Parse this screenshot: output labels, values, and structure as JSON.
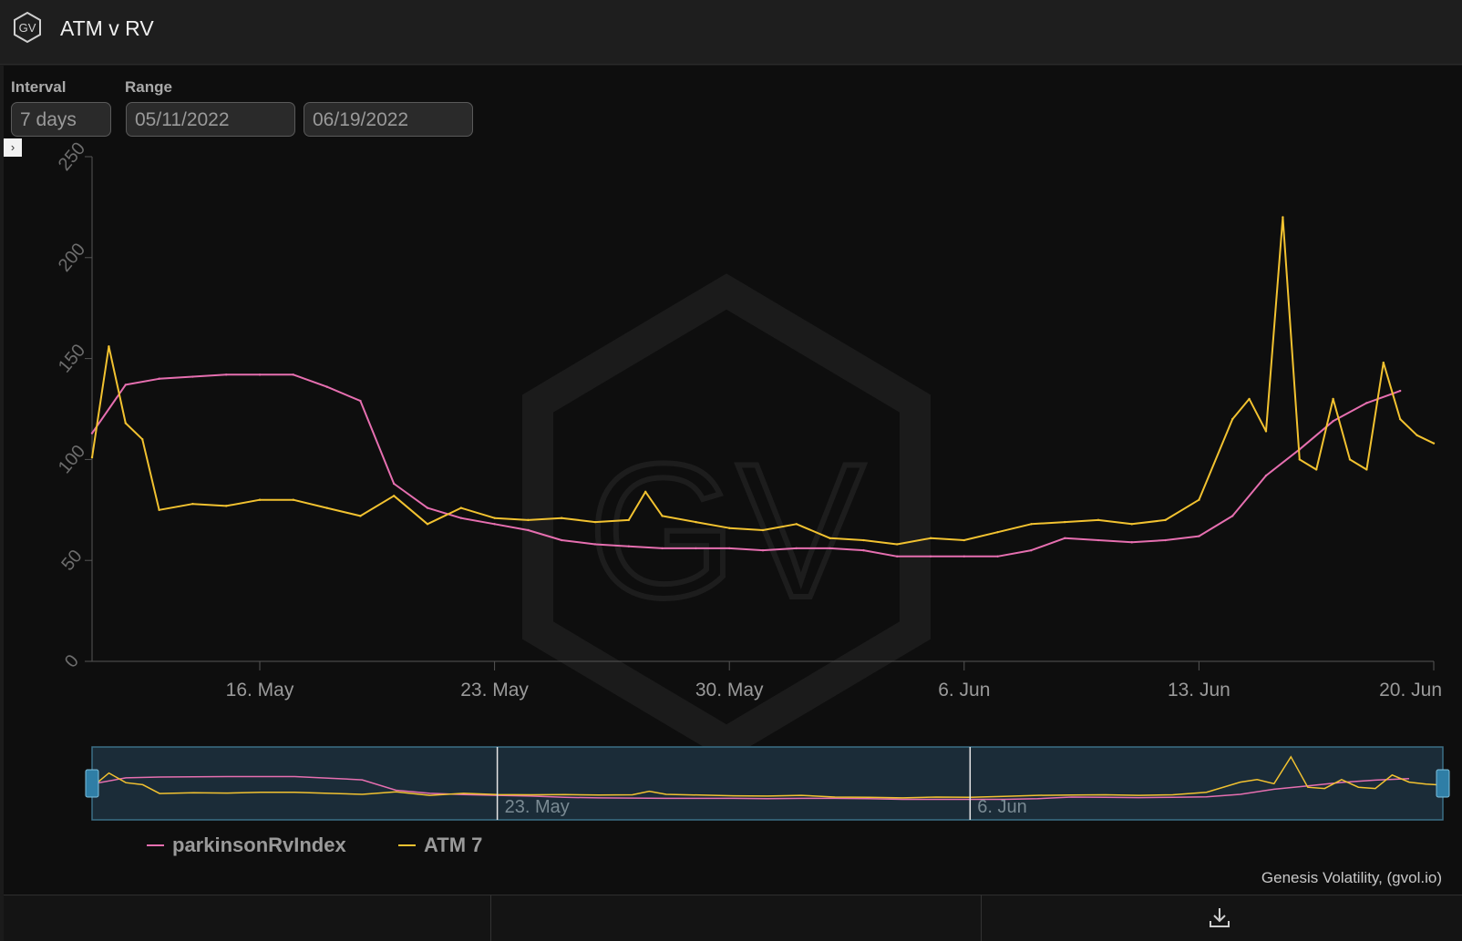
{
  "app": {
    "title": "ATM v RV",
    "logo_text": "GV"
  },
  "controls": {
    "interval_label": "Interval",
    "interval_value": "7 days",
    "range_label": "Range",
    "range_start": "05/11/2022",
    "range_end": "06/19/2022"
  },
  "credit": "Genesis Volatility, (gvol.io)",
  "watermark_text": "GV",
  "icons": {
    "toggle": "chevron-right-icon",
    "download": "download-icon",
    "logo": "gv-hexagon-logo"
  },
  "colors": {
    "rv": "#e66fb0",
    "atm": "#f2c230",
    "background": "#0e0e0e",
    "navigator_fill": "#1b2c38",
    "navigator_border": "#3b6f86"
  },
  "chart_data": {
    "type": "line",
    "title": "ATM v RV",
    "x_type": "date",
    "xlim": [
      "2022-05-11",
      "2022-06-20"
    ],
    "ylim": [
      0,
      250
    ],
    "yticks": [
      0,
      50,
      100,
      150,
      200,
      250
    ],
    "xticks": [
      "16. May",
      "23. May",
      "30. May",
      "6. Jun",
      "13. Jun",
      "20. Jun"
    ],
    "navigator_ticks": [
      "23. May",
      "6. Jun"
    ],
    "grid": false,
    "legend": "bottom-left",
    "series": [
      {
        "name": "parkinsonRvIndex",
        "color": "#e66fb0",
        "x": [
          "2022-05-11",
          "2022-05-12",
          "2022-05-13",
          "2022-05-14",
          "2022-05-15",
          "2022-05-16",
          "2022-05-17",
          "2022-05-18",
          "2022-05-19",
          "2022-05-20",
          "2022-05-21",
          "2022-05-22",
          "2022-05-23",
          "2022-05-24",
          "2022-05-25",
          "2022-05-26",
          "2022-05-27",
          "2022-05-28",
          "2022-05-29",
          "2022-05-30",
          "2022-05-31",
          "2022-06-01",
          "2022-06-02",
          "2022-06-03",
          "2022-06-04",
          "2022-06-05",
          "2022-06-06",
          "2022-06-07",
          "2022-06-08",
          "2022-06-09",
          "2022-06-10",
          "2022-06-11",
          "2022-06-12",
          "2022-06-13",
          "2022-06-14",
          "2022-06-15",
          "2022-06-16",
          "2022-06-17",
          "2022-06-18",
          "2022-06-19"
        ],
        "values": [
          113,
          137,
          140,
          141,
          142,
          142,
          142,
          136,
          129,
          88,
          76,
          71,
          68,
          65,
          60,
          58,
          57,
          56,
          56,
          56,
          55,
          56,
          56,
          55,
          52,
          52,
          52,
          52,
          55,
          61,
          60,
          59,
          60,
          62,
          72,
          92,
          105,
          119,
          128,
          134
        ]
      },
      {
        "name": "ATM 7",
        "color": "#f2c230",
        "x": [
          "2022-05-11",
          "2022-05-11 12:00",
          "2022-05-12",
          "2022-05-12 12:00",
          "2022-05-13",
          "2022-05-14",
          "2022-05-15",
          "2022-05-16",
          "2022-05-17",
          "2022-05-18",
          "2022-05-19",
          "2022-05-20",
          "2022-05-21",
          "2022-05-22",
          "2022-05-23",
          "2022-05-24",
          "2022-05-25",
          "2022-05-26",
          "2022-05-27",
          "2022-05-27 12:00",
          "2022-05-28",
          "2022-05-29",
          "2022-05-30",
          "2022-05-31",
          "2022-06-01",
          "2022-06-02",
          "2022-06-03",
          "2022-06-04",
          "2022-06-05",
          "2022-06-06",
          "2022-06-07",
          "2022-06-08",
          "2022-06-09",
          "2022-06-10",
          "2022-06-11",
          "2022-06-12",
          "2022-06-13",
          "2022-06-14",
          "2022-06-14 12:00",
          "2022-06-15",
          "2022-06-15 12:00",
          "2022-06-16",
          "2022-06-16 12:00",
          "2022-06-17",
          "2022-06-17 12:00",
          "2022-06-18",
          "2022-06-18 12:00",
          "2022-06-19",
          "2022-06-19 12:00",
          "2022-06-20"
        ],
        "values": [
          101,
          156,
          118,
          110,
          75,
          78,
          77,
          80,
          80,
          76,
          72,
          82,
          68,
          76,
          71,
          70,
          71,
          69,
          70,
          84,
          72,
          69,
          66,
          65,
          68,
          61,
          60,
          58,
          61,
          60,
          64,
          68,
          69,
          70,
          68,
          70,
          80,
          120,
          130,
          114,
          220,
          100,
          95,
          130,
          100,
          95,
          148,
          120,
          112,
          108
        ]
      }
    ]
  }
}
